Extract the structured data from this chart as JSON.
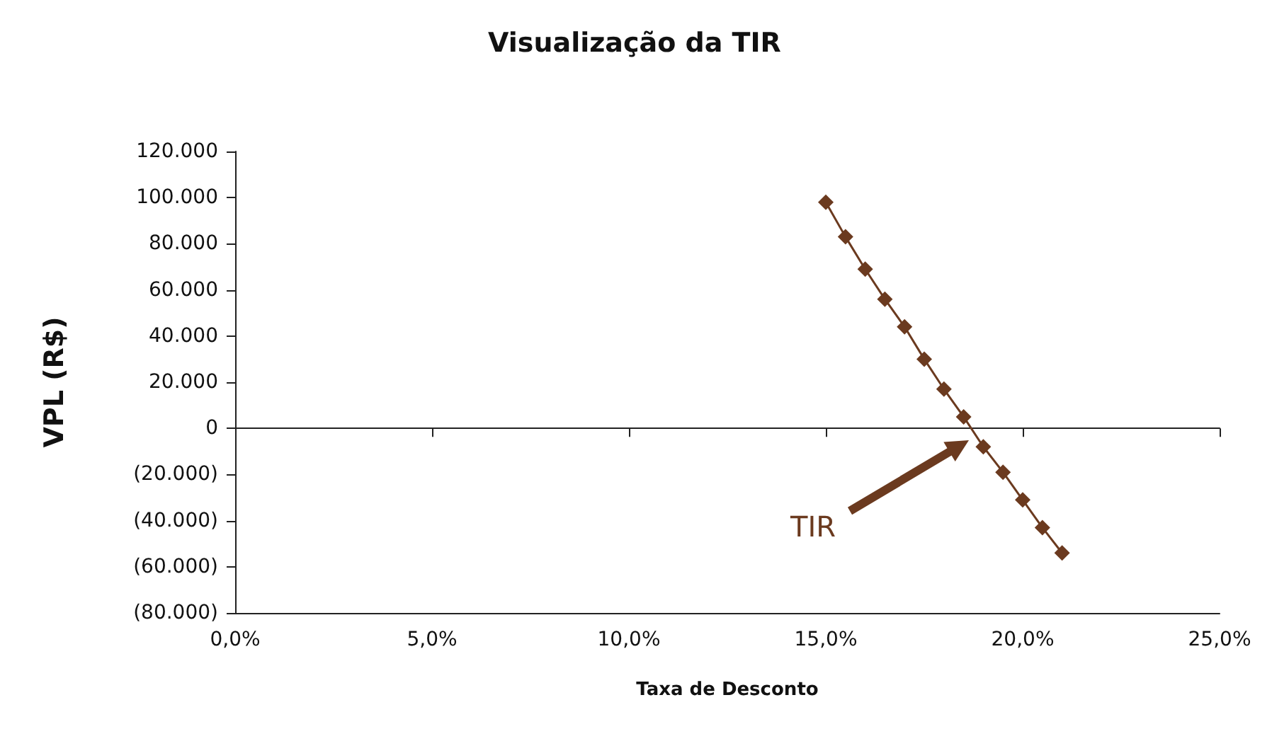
{
  "chart_data": {
    "type": "line",
    "title": "Visualização da TIR",
    "xlabel": "Taxa de Desconto",
    "ylabel": "VPL (R$)",
    "x": [
      15,
      15.5,
      16,
      16.5,
      17,
      17.5,
      18,
      18.5,
      19,
      19.5,
      20,
      20.5,
      21
    ],
    "series": [
      {
        "color": "#6b3a1f",
        "values": [
          98000,
          83000,
          69000,
          56000,
          44000,
          30000,
          17000,
          5000,
          -8000,
          -19000,
          -31000,
          -43000,
          -54000
        ]
      }
    ],
    "xlim": [
      0,
      25
    ],
    "xticks": [
      {
        "value": 0,
        "label": "0,0%"
      },
      {
        "value": 5,
        "label": "5,0%"
      },
      {
        "value": 10,
        "label": "10,0%"
      },
      {
        "value": 15,
        "label": "15,0%"
      },
      {
        "value": 20,
        "label": "20,0%"
      },
      {
        "value": 25,
        "label": "25,0%"
      }
    ],
    "ylim": [
      -80000,
      120000
    ],
    "yticks": [
      {
        "value": -80000,
        "label": "(80.000)"
      },
      {
        "value": -60000,
        "label": "(60.000)"
      },
      {
        "value": -40000,
        "label": "(40.000)"
      },
      {
        "value": -20000,
        "label": "(20.000)"
      },
      {
        "value": 0,
        "label": "0"
      },
      {
        "value": 20000,
        "label": "20.000"
      },
      {
        "value": 40000,
        "label": "40.000"
      },
      {
        "value": 60000,
        "label": "60.000"
      },
      {
        "value": 80000,
        "label": "80.000"
      },
      {
        "value": 100000,
        "label": "100.000"
      },
      {
        "value": 120000,
        "label": "120.000"
      }
    ],
    "annotations": [
      "TIR"
    ],
    "marker": "diamond",
    "line_style": "solid"
  }
}
